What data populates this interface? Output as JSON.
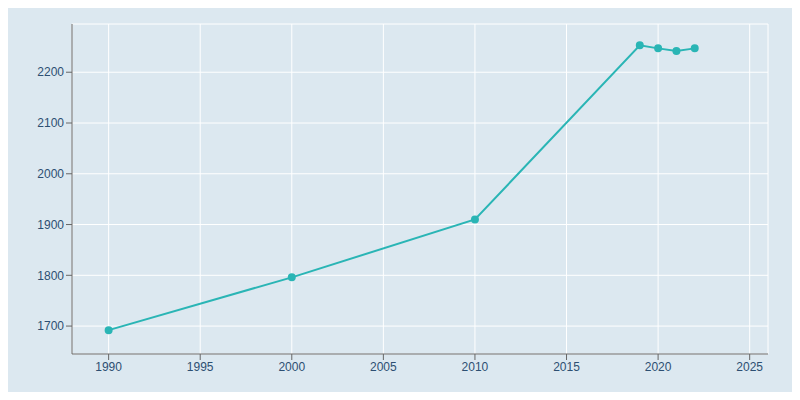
{
  "chart_data": {
    "type": "line",
    "x": [
      1990,
      2000,
      2010,
      2019,
      2020,
      2021,
      2022
    ],
    "series": [
      {
        "values": [
          1692,
          1796,
          1910,
          2253,
          2247,
          2242,
          2247
        ],
        "color": "#2ab5b5",
        "marker": "circle"
      }
    ],
    "xlim": [
      1988,
      2026
    ],
    "ylim": [
      1645,
      2295
    ],
    "xticks": [
      1990,
      1995,
      2000,
      2005,
      2010,
      2015,
      2020,
      2025
    ],
    "yticks": [
      1700,
      1800,
      1900,
      2000,
      2100,
      2200
    ],
    "grid": true
  }
}
